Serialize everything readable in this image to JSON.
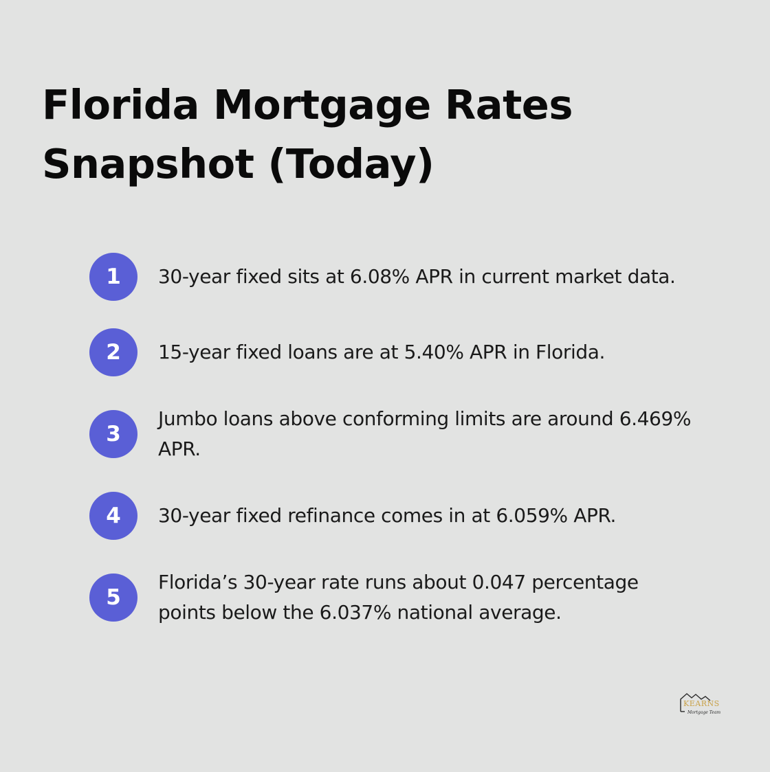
{
  "title": {
    "line1": "Florida Mortgage Rates",
    "line2": "Snapshot (Today)"
  },
  "items": [
    {
      "number": "1",
      "text": "30-year fixed sits at 6.08% APR in current market data."
    },
    {
      "number": "2",
      "text": "15-year fixed loans are at 5.40% APR in Florida."
    },
    {
      "number": "3",
      "text": "Jumbo loans above conforming limits are around 6.469% APR."
    },
    {
      "number": "4",
      "text": "30-year fixed refinance comes in at 6.059% APR."
    },
    {
      "number": "5",
      "text": "Florida’s 30-year rate runs about 0.047 percentage points below the 6.037% national average."
    }
  ],
  "logo": {
    "brand": "KEARNS",
    "tagline": "Mortgage Team",
    "icon": "house-roof-icon"
  },
  "colors": {
    "background": "#e2e3e2",
    "badge": "#5a5fd6",
    "title_text": "#0a0a0a",
    "body_text": "#1a1a1a",
    "logo_gold": "#c9a24a"
  }
}
